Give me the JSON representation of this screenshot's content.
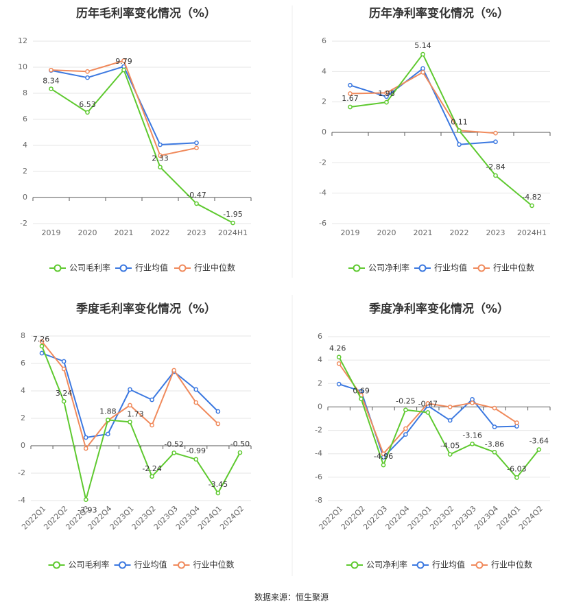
{
  "source": "数据来源：恒生聚源",
  "colors": {
    "company": "#5ec92f",
    "avg": "#3b78e0",
    "median": "#f08a5c"
  },
  "chart_data": [
    {
      "type": "line",
      "title": "历年毛利率变化情况（%）",
      "categories": [
        "2019",
        "2020",
        "2021",
        "2022",
        "2023",
        "2024H1"
      ],
      "ylim": [
        -2,
        12
      ],
      "yticks": [
        -2,
        0,
        2,
        4,
        6,
        8,
        10,
        12
      ],
      "series": [
        {
          "name": "公司毛利率",
          "values": [
            8.34,
            6.53,
            9.79,
            2.33,
            -0.47,
            -1.95
          ],
          "labels": [
            "8.34",
            "6.53",
            "9.79",
            "2.33",
            "-0.47",
            "-1.95"
          ]
        },
        {
          "name": "行业均值",
          "values": [
            9.75,
            9.2,
            10.05,
            4.05,
            4.2,
            null
          ]
        },
        {
          "name": "行业中位数",
          "values": [
            9.78,
            9.67,
            10.5,
            3.22,
            3.8,
            null
          ]
        }
      ]
    },
    {
      "type": "line",
      "title": "历年净利率变化情况（%）",
      "categories": [
        "2019",
        "2020",
        "2021",
        "2022",
        "2023",
        "2024H1"
      ],
      "ylim": [
        -6,
        6
      ],
      "yticks": [
        -6,
        -4,
        -2,
        0,
        2,
        4,
        6
      ],
      "series": [
        {
          "name": "公司净利率",
          "values": [
            1.67,
            1.98,
            5.14,
            0.11,
            -2.84,
            -4.82
          ],
          "labels": [
            "1.67",
            "1.98",
            "5.14",
            "0.11",
            "-2.84",
            "-4.82"
          ]
        },
        {
          "name": "行业均值",
          "values": [
            3.1,
            2.35,
            4.2,
            -0.8,
            -0.62,
            null
          ]
        },
        {
          "name": "行业中位数",
          "values": [
            2.55,
            2.6,
            3.95,
            0.12,
            -0.05,
            null
          ]
        }
      ]
    },
    {
      "type": "line",
      "title": "季度毛利率变化情况（%）",
      "categories": [
        "2022Q1",
        "2022Q2",
        "2022Q3",
        "2022Q4",
        "2023Q1",
        "2023Q2",
        "2023Q3",
        "2023Q4",
        "2024Q1",
        "2024Q2"
      ],
      "ylim": [
        -4,
        8
      ],
      "yticks": [
        -4,
        -2,
        0,
        2,
        4,
        6,
        8
      ],
      "series": [
        {
          "name": "公司毛利率",
          "values": [
            7.26,
            3.24,
            -3.93,
            1.88,
            1.73,
            -2.24,
            -0.52,
            -0.99,
            -3.45,
            -0.5
          ],
          "labels": [
            "7.26",
            "3.24",
            "-3.93",
            "1.88",
            "1.73",
            "-2.24",
            "-0.52",
            "-0.99",
            "-3.45",
            "-0.50"
          ]
        },
        {
          "name": "行业均值",
          "values": [
            6.75,
            6.15,
            0.6,
            0.85,
            4.1,
            3.35,
            5.4,
            4.1,
            2.5,
            null
          ]
        },
        {
          "name": "行业中位数",
          "values": [
            7.6,
            5.6,
            -0.2,
            1.85,
            2.95,
            1.5,
            5.5,
            3.15,
            1.6,
            null
          ]
        }
      ]
    },
    {
      "type": "line",
      "title": "季度净利率变化情况（%）",
      "categories": [
        "2022Q1",
        "2022Q2",
        "2022Q3",
        "2022Q4",
        "2023Q1",
        "2023Q2",
        "2023Q3",
        "2023Q4",
        "2024Q1",
        "2024Q2"
      ],
      "ylim": [
        -8,
        6
      ],
      "yticks": [
        -8,
        -6,
        -4,
        -2,
        0,
        2,
        4,
        6
      ],
      "series": [
        {
          "name": "公司净利率",
          "values": [
            4.26,
            0.69,
            -4.96,
            -0.25,
            -0.47,
            -4.05,
            -3.16,
            -3.86,
            -6.03,
            -3.64
          ],
          "labels": [
            "4.26",
            "0.69",
            "-4.96",
            "-0.25",
            "-0.47",
            "-4.05",
            "-3.16",
            "-3.86",
            "-6.03",
            "-3.64"
          ]
        },
        {
          "name": "行业均值",
          "values": [
            1.95,
            1.35,
            -4.3,
            -2.35,
            0.1,
            -1.15,
            0.65,
            -1.7,
            -1.65,
            null
          ]
        },
        {
          "name": "行业中位数",
          "values": [
            3.7,
            1.0,
            -4.0,
            -1.85,
            0.3,
            0.0,
            0.35,
            -0.1,
            -1.35,
            null
          ]
        }
      ]
    }
  ]
}
